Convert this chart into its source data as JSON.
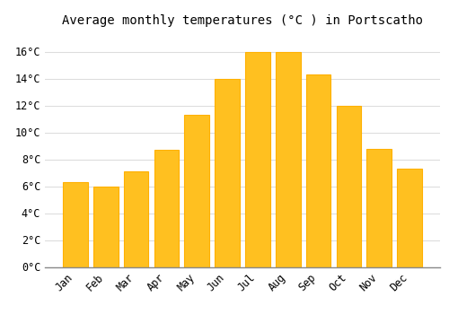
{
  "title": "Average monthly temperatures (°C ) in Portscatho",
  "months": [
    "Jan",
    "Feb",
    "Mar",
    "Apr",
    "May",
    "Jun",
    "Jul",
    "Aug",
    "Sep",
    "Oct",
    "Nov",
    "Dec"
  ],
  "values": [
    6.3,
    6.0,
    7.1,
    8.7,
    11.3,
    14.0,
    16.0,
    16.0,
    14.3,
    12.0,
    8.8,
    7.3
  ],
  "bar_color_face": "#FFC020",
  "bar_color_edge": "#FFB000",
  "background_color": "#FFFFFF",
  "grid_color": "#DDDDDD",
  "ylim": [
    0,
    17.5
  ],
  "yticks": [
    0,
    2,
    4,
    6,
    8,
    10,
    12,
    14,
    16
  ],
  "title_fontsize": 10,
  "tick_fontsize": 8.5,
  "bar_width": 0.82
}
